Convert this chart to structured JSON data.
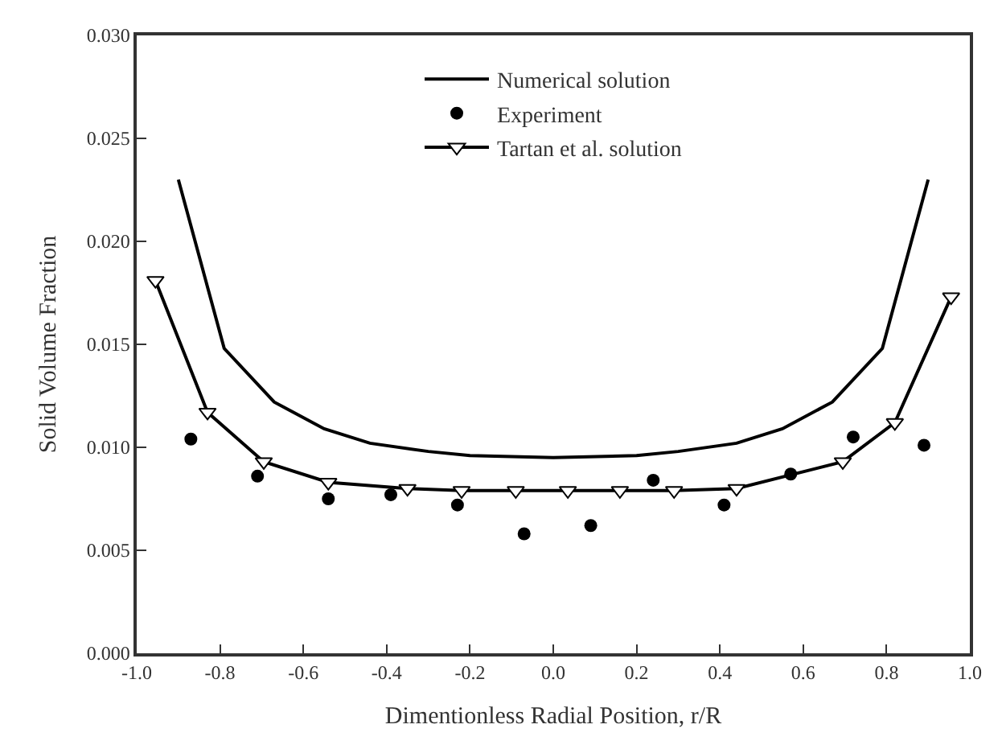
{
  "chart_data": {
    "type": "line",
    "xlabel": "Dimentionless Radial Position, r/R",
    "ylabel": "Solid Volume Fraction",
    "xlim": [
      -1.0,
      1.0
    ],
    "ylim": [
      0.0,
      0.03
    ],
    "xticks": [
      {
        "value": -1.0,
        "label": "-1.0"
      },
      {
        "value": -0.8,
        "label": "-0.8"
      },
      {
        "value": -0.6,
        "label": "-0.6"
      },
      {
        "value": -0.4,
        "label": "-0.4"
      },
      {
        "value": -0.2,
        "label": "-0.2"
      },
      {
        "value": 0.0,
        "label": "0.0"
      },
      {
        "value": 0.2,
        "label": "0.2"
      },
      {
        "value": 0.4,
        "label": "0.4"
      },
      {
        "value": 0.6,
        "label": "0.6"
      },
      {
        "value": 0.8,
        "label": "0.8"
      },
      {
        "value": 1.0,
        "label": "1.0"
      }
    ],
    "yticks": [
      {
        "value": 0.0,
        "label": "0.000"
      },
      {
        "value": 0.005,
        "label": "0.005"
      },
      {
        "value": 0.01,
        "label": "0.010"
      },
      {
        "value": 0.015,
        "label": "0.015"
      },
      {
        "value": 0.02,
        "label": "0.020"
      },
      {
        "value": 0.025,
        "label": "0.025"
      },
      {
        "value": 0.03,
        "label": "0.030"
      }
    ],
    "grid": false,
    "legend": "top",
    "series": [
      {
        "name": "Numerical solution",
        "marker": "none",
        "color": "#000000",
        "x": [
          -0.9,
          -0.79,
          -0.67,
          -0.55,
          -0.44,
          -0.3,
          -0.2,
          0.0,
          0.2,
          0.3,
          0.44,
          0.55,
          0.67,
          0.79,
          0.9
        ],
        "values": [
          0.023,
          0.0148,
          0.0122,
          0.0109,
          0.0102,
          0.0098,
          0.0096,
          0.0095,
          0.0096,
          0.0098,
          0.0102,
          0.0109,
          0.0122,
          0.0148,
          0.023
        ]
      },
      {
        "name": "Experiment",
        "type": "scatter",
        "marker": "circle",
        "color": "#000000",
        "x": [
          -0.87,
          -0.71,
          -0.54,
          -0.39,
          -0.23,
          -0.07,
          0.09,
          0.24,
          0.41,
          0.57,
          0.72,
          0.89
        ],
        "values": [
          0.0104,
          0.0086,
          0.0075,
          0.0077,
          0.0072,
          0.0058,
          0.0062,
          0.0084,
          0.0072,
          0.0087,
          0.0105,
          0.0101
        ]
      },
      {
        "name": "Tartan et al. solution",
        "marker": "triangle",
        "color": "#000000",
        "x": [
          -0.955,
          -0.83,
          -0.695,
          -0.54,
          -0.35,
          -0.22,
          -0.09,
          0.035,
          0.16,
          0.29,
          0.44,
          0.695,
          0.82,
          0.955
        ],
        "values": [
          0.0181,
          0.0117,
          0.0093,
          0.0083,
          0.008,
          0.0079,
          0.0079,
          0.0079,
          0.0079,
          0.0079,
          0.008,
          0.0093,
          0.0112,
          0.0173
        ]
      }
    ]
  }
}
